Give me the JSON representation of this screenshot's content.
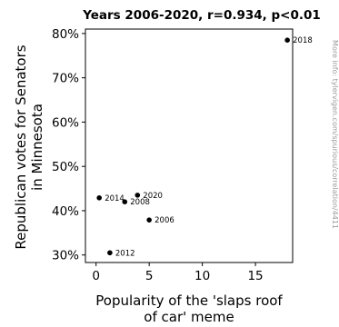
{
  "chart_data": {
    "type": "scatter",
    "title": "Years 2006-2020, r=0.934, p<0.01",
    "xlabel": [
      "Popularity of the 'slaps roof",
      "of car' meme"
    ],
    "ylabel": [
      "Republican votes for Senators",
      "in Minnesota"
    ],
    "xlim": [
      -1.0,
      18.5
    ],
    "ylim": [
      28.3,
      81.0
    ],
    "xticks": [
      0,
      5,
      10,
      15
    ],
    "xtick_labels": [
      "0",
      "5",
      "10",
      "15"
    ],
    "yticks": [
      30,
      40,
      50,
      60,
      70,
      80
    ],
    "ytick_labels": [
      "30%",
      "40%",
      "50%",
      "60%",
      "70%",
      "80%"
    ],
    "grid": false,
    "points": [
      {
        "label": "2006",
        "x": 5.0,
        "y": 37.9
      },
      {
        "label": "2008",
        "x": 2.7,
        "y": 42.0
      },
      {
        "label": "2012",
        "x": 1.3,
        "y": 30.5
      },
      {
        "label": "2014",
        "x": 0.3,
        "y": 42.9
      },
      {
        "label": "2018",
        "x": 18.0,
        "y": 78.5
      },
      {
        "label": "2020",
        "x": 3.9,
        "y": 43.5
      }
    ],
    "point_color": "#000000",
    "side_note": "More info: tylervigen.com/spurious/correlation/4411"
  }
}
